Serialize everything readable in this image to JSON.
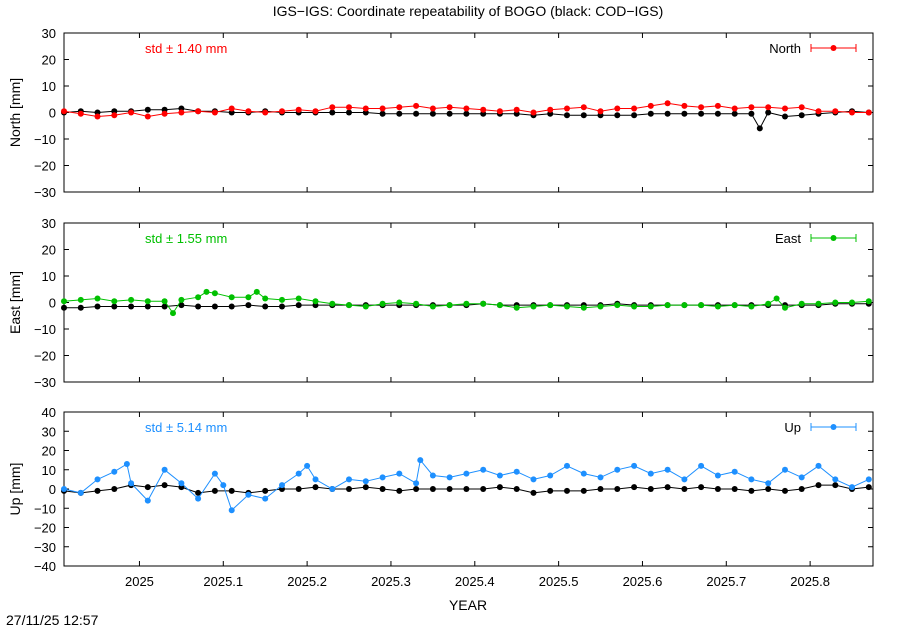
{
  "figure": {
    "title": "IGS−IGS: Coordinate repeatability of BOGO (black: COD−IGS)",
    "timestamp": "27/11/25 12:57",
    "xlabel": "YEAR"
  },
  "chart_data": [
    {
      "type": "scatter",
      "panel": "north",
      "ylabel": "North [mm]",
      "ylim": [
        -30,
        30
      ],
      "yticks": [
        30,
        20,
        10,
        0,
        -10,
        -20,
        -30
      ],
      "ytick_labels": [
        "30",
        "20",
        "10",
        "0",
        "−10",
        "−20",
        "−30"
      ],
      "xlim": [
        2024.91,
        2025.875
      ],
      "xticks": [
        2025,
        2025.1,
        2025.2,
        2025.3,
        2025.4,
        2025.5,
        2025.6,
        2025.7,
        2025.8
      ],
      "xtick_labels": [
        "2025",
        "2025.1",
        "2025.2",
        "2025.3",
        "2025.4",
        "2025.5",
        "2025.6",
        "2025.7",
        "2025.8"
      ],
      "std_label": "std ± 1.40 mm",
      "legend": "North",
      "legend_position": "top-right",
      "color": "#ff0000",
      "series": [
        {
          "name": "North",
          "color": "#ff0000",
          "x": [
            2024.91,
            2024.93,
            2024.95,
            2024.97,
            2024.99,
            2025.01,
            2025.03,
            2025.05,
            2025.07,
            2025.09,
            2025.11,
            2025.13,
            2025.15,
            2025.17,
            2025.19,
            2025.21,
            2025.23,
            2025.25,
            2025.27,
            2025.29,
            2025.31,
            2025.33,
            2025.35,
            2025.37,
            2025.39,
            2025.41,
            2025.43,
            2025.45,
            2025.47,
            2025.49,
            2025.51,
            2025.53,
            2025.55,
            2025.57,
            2025.59,
            2025.61,
            2025.63,
            2025.65,
            2025.67,
            2025.69,
            2025.71,
            2025.73,
            2025.75,
            2025.77,
            2025.79,
            2025.81,
            2025.83,
            2025.85,
            2025.87
          ],
          "y": [
            0.5,
            -0.5,
            -1.5,
            -1.0,
            0.0,
            -1.5,
            -0.5,
            0.0,
            0.5,
            0.0,
            1.5,
            0.5,
            0.0,
            0.5,
            1.0,
            0.5,
            2.0,
            2.0,
            1.5,
            1.5,
            2.0,
            2.5,
            1.5,
            2.0,
            1.5,
            1.0,
            0.5,
            1.0,
            0.0,
            1.0,
            1.5,
            2.0,
            0.5,
            1.5,
            1.5,
            2.5,
            3.5,
            2.5,
            2.0,
            2.5,
            1.5,
            2.0,
            2.0,
            1.5,
            2.0,
            0.5,
            0.5,
            0.0,
            0.0
          ]
        },
        {
          "name": "COD−IGS",
          "color": "#000000",
          "x": [
            2024.91,
            2024.93,
            2024.95,
            2024.97,
            2024.99,
            2025.01,
            2025.03,
            2025.05,
            2025.07,
            2025.09,
            2025.11,
            2025.13,
            2025.15,
            2025.17,
            2025.19,
            2025.21,
            2025.23,
            2025.25,
            2025.27,
            2025.29,
            2025.31,
            2025.33,
            2025.35,
            2025.37,
            2025.39,
            2025.41,
            2025.43,
            2025.45,
            2025.47,
            2025.49,
            2025.51,
            2025.53,
            2025.55,
            2025.57,
            2025.59,
            2025.61,
            2025.63,
            2025.65,
            2025.67,
            2025.69,
            2025.71,
            2025.73,
            2025.74,
            2025.75,
            2025.77,
            2025.79,
            2025.81,
            2025.83,
            2025.85,
            2025.87
          ],
          "y": [
            0.0,
            0.5,
            0.0,
            0.5,
            0.5,
            1.0,
            1.0,
            1.5,
            0.5,
            0.5,
            0.0,
            0.0,
            0.5,
            0.0,
            0.0,
            0.0,
            0.0,
            0.0,
            0.0,
            -0.5,
            -0.5,
            -0.5,
            -0.5,
            -0.5,
            -0.5,
            -0.5,
            -0.5,
            -0.5,
            -1.0,
            -0.5,
            -1.0,
            -1.0,
            -1.0,
            -1.0,
            -1.0,
            -0.5,
            -0.5,
            -0.5,
            -0.5,
            -0.5,
            -0.5,
            -0.5,
            -6.0,
            0.0,
            -1.5,
            -1.0,
            -0.5,
            0.0,
            0.5,
            0.0
          ]
        }
      ]
    },
    {
      "type": "scatter",
      "panel": "east",
      "ylabel": "East [mm]",
      "ylim": [
        -30,
        30
      ],
      "yticks": [
        30,
        20,
        10,
        0,
        -10,
        -20,
        -30
      ],
      "ytick_labels": [
        "30",
        "20",
        "10",
        "0",
        "−10",
        "−20",
        "−30"
      ],
      "xlim": [
        2024.91,
        2025.875
      ],
      "xticks": [
        2025,
        2025.1,
        2025.2,
        2025.3,
        2025.4,
        2025.5,
        2025.6,
        2025.7,
        2025.8
      ],
      "xtick_labels": [
        "2025",
        "2025.1",
        "2025.2",
        "2025.3",
        "2025.4",
        "2025.5",
        "2025.6",
        "2025.7",
        "2025.8"
      ],
      "std_label": "std ± 1.55 mm",
      "legend": "East",
      "legend_position": "top-right",
      "color": "#00c000",
      "series": [
        {
          "name": "East",
          "color": "#00c000",
          "x": [
            2024.91,
            2024.93,
            2024.95,
            2024.97,
            2024.99,
            2025.01,
            2025.03,
            2025.04,
            2025.05,
            2025.07,
            2025.08,
            2025.09,
            2025.11,
            2025.13,
            2025.14,
            2025.15,
            2025.17,
            2025.19,
            2025.21,
            2025.23,
            2025.25,
            2025.27,
            2025.29,
            2025.31,
            2025.33,
            2025.35,
            2025.37,
            2025.39,
            2025.41,
            2025.43,
            2025.45,
            2025.47,
            2025.49,
            2025.51,
            2025.53,
            2025.55,
            2025.57,
            2025.59,
            2025.61,
            2025.63,
            2025.65,
            2025.67,
            2025.69,
            2025.71,
            2025.73,
            2025.75,
            2025.76,
            2025.77,
            2025.79,
            2025.81,
            2025.83,
            2025.85,
            2025.87
          ],
          "y": [
            0.5,
            1.0,
            1.5,
            0.5,
            1.0,
            0.5,
            0.5,
            -4.0,
            1.0,
            2.0,
            4.0,
            3.5,
            2.0,
            2.0,
            4.0,
            1.5,
            1.0,
            1.5,
            0.5,
            -0.5,
            -1.0,
            -1.5,
            -0.5,
            0.0,
            -0.5,
            -1.5,
            -1.0,
            -0.5,
            -0.5,
            -1.0,
            -2.0,
            -1.5,
            -1.0,
            -1.5,
            -2.0,
            -1.5,
            -1.0,
            -1.5,
            -1.5,
            -1.0,
            -1.0,
            -1.0,
            -1.5,
            -1.0,
            -1.5,
            -0.5,
            1.5,
            -2.0,
            -0.5,
            -0.5,
            0.0,
            0.0,
            0.5
          ]
        },
        {
          "name": "COD−IGS",
          "color": "#000000",
          "x": [
            2024.91,
            2024.93,
            2024.95,
            2024.97,
            2024.99,
            2025.01,
            2025.03,
            2025.05,
            2025.07,
            2025.09,
            2025.11,
            2025.13,
            2025.15,
            2025.17,
            2025.19,
            2025.21,
            2025.23,
            2025.25,
            2025.27,
            2025.29,
            2025.31,
            2025.33,
            2025.35,
            2025.37,
            2025.39,
            2025.41,
            2025.43,
            2025.45,
            2025.47,
            2025.49,
            2025.51,
            2025.53,
            2025.55,
            2025.57,
            2025.59,
            2025.61,
            2025.63,
            2025.65,
            2025.67,
            2025.69,
            2025.71,
            2025.73,
            2025.75,
            2025.77,
            2025.79,
            2025.81,
            2025.83,
            2025.85,
            2025.87
          ],
          "y": [
            -2.0,
            -2.0,
            -1.5,
            -1.5,
            -1.5,
            -1.5,
            -1.5,
            -1.0,
            -1.5,
            -1.5,
            -1.5,
            -1.0,
            -1.5,
            -1.5,
            -1.0,
            -1.0,
            -1.0,
            -1.0,
            -1.0,
            -1.0,
            -1.0,
            -1.0,
            -1.0,
            -1.0,
            -1.0,
            -0.5,
            -1.0,
            -1.0,
            -1.0,
            -1.0,
            -1.0,
            -1.0,
            -1.0,
            -0.5,
            -1.0,
            -1.0,
            -1.0,
            -1.0,
            -1.0,
            -1.0,
            -1.0,
            -1.0,
            -1.0,
            -1.0,
            -1.0,
            -1.0,
            -0.5,
            -0.5,
            -0.5
          ]
        }
      ]
    },
    {
      "type": "scatter",
      "panel": "up",
      "ylabel": "Up [mm]",
      "ylim": [
        -40,
        40
      ],
      "yticks": [
        40,
        30,
        20,
        10,
        0,
        -10,
        -20,
        -30,
        -40
      ],
      "ytick_labels": [
        "40",
        "30",
        "20",
        "10",
        "0",
        "−10",
        "−20",
        "−30",
        "−40"
      ],
      "xlim": [
        2024.91,
        2025.875
      ],
      "xticks": [
        2025,
        2025.1,
        2025.2,
        2025.3,
        2025.4,
        2025.5,
        2025.6,
        2025.7,
        2025.8
      ],
      "xtick_labels": [
        "2025",
        "2025.1",
        "2025.2",
        "2025.3",
        "2025.4",
        "2025.5",
        "2025.6",
        "2025.7",
        "2025.8"
      ],
      "std_label": "std ± 5.14 mm",
      "legend": "Up",
      "legend_position": "top-right",
      "color": "#1e90ff",
      "series": [
        {
          "name": "Up",
          "color": "#1e90ff",
          "x": [
            2024.91,
            2024.93,
            2024.95,
            2024.97,
            2024.985,
            2024.99,
            2025.01,
            2025.03,
            2025.05,
            2025.07,
            2025.09,
            2025.1,
            2025.11,
            2025.13,
            2025.15,
            2025.17,
            2025.19,
            2025.2,
            2025.21,
            2025.23,
            2025.25,
            2025.27,
            2025.29,
            2025.31,
            2025.33,
            2025.335,
            2025.35,
            2025.37,
            2025.39,
            2025.41,
            2025.43,
            2025.45,
            2025.47,
            2025.49,
            2025.51,
            2025.53,
            2025.55,
            2025.57,
            2025.59,
            2025.61,
            2025.63,
            2025.65,
            2025.67,
            2025.69,
            2025.71,
            2025.73,
            2025.75,
            2025.77,
            2025.79,
            2025.81,
            2025.83,
            2025.85,
            2025.87
          ],
          "y": [
            0,
            -2,
            5,
            9,
            13,
            3,
            -6,
            10,
            3,
            -5,
            8,
            2,
            -11,
            -3,
            -5,
            2,
            8,
            12,
            5,
            0,
            5,
            4,
            6,
            8,
            3,
            15,
            7,
            6,
            8,
            10,
            7,
            9,
            5,
            7,
            12,
            8,
            6,
            10,
            12,
            8,
            10,
            5,
            12,
            7,
            9,
            5,
            3,
            10,
            6,
            12,
            5,
            1,
            5
          ]
        },
        {
          "name": "COD−IGS",
          "color": "#000000",
          "x": [
            2024.91,
            2024.93,
            2024.95,
            2024.97,
            2024.99,
            2025.01,
            2025.03,
            2025.05,
            2025.07,
            2025.09,
            2025.11,
            2025.13,
            2025.15,
            2025.17,
            2025.19,
            2025.21,
            2025.23,
            2025.25,
            2025.27,
            2025.29,
            2025.31,
            2025.33,
            2025.35,
            2025.37,
            2025.39,
            2025.41,
            2025.43,
            2025.45,
            2025.47,
            2025.49,
            2025.51,
            2025.53,
            2025.55,
            2025.57,
            2025.59,
            2025.61,
            2025.63,
            2025.65,
            2025.67,
            2025.69,
            2025.71,
            2025.73,
            2025.75,
            2025.77,
            2025.79,
            2025.81,
            2025.83,
            2025.85,
            2025.87
          ],
          "y": [
            -1,
            -2,
            -1,
            0,
            2,
            1,
            2,
            1,
            -2,
            -1,
            -1,
            -2,
            -1,
            0,
            0,
            1,
            0,
            0,
            1,
            0,
            -1,
            0,
            0,
            0,
            0,
            0,
            1,
            0,
            -2,
            -1,
            -1,
            -1,
            0,
            0,
            1,
            0,
            1,
            0,
            1,
            0,
            0,
            -1,
            0,
            -1,
            0,
            2,
            2,
            0,
            1
          ]
        }
      ]
    }
  ]
}
